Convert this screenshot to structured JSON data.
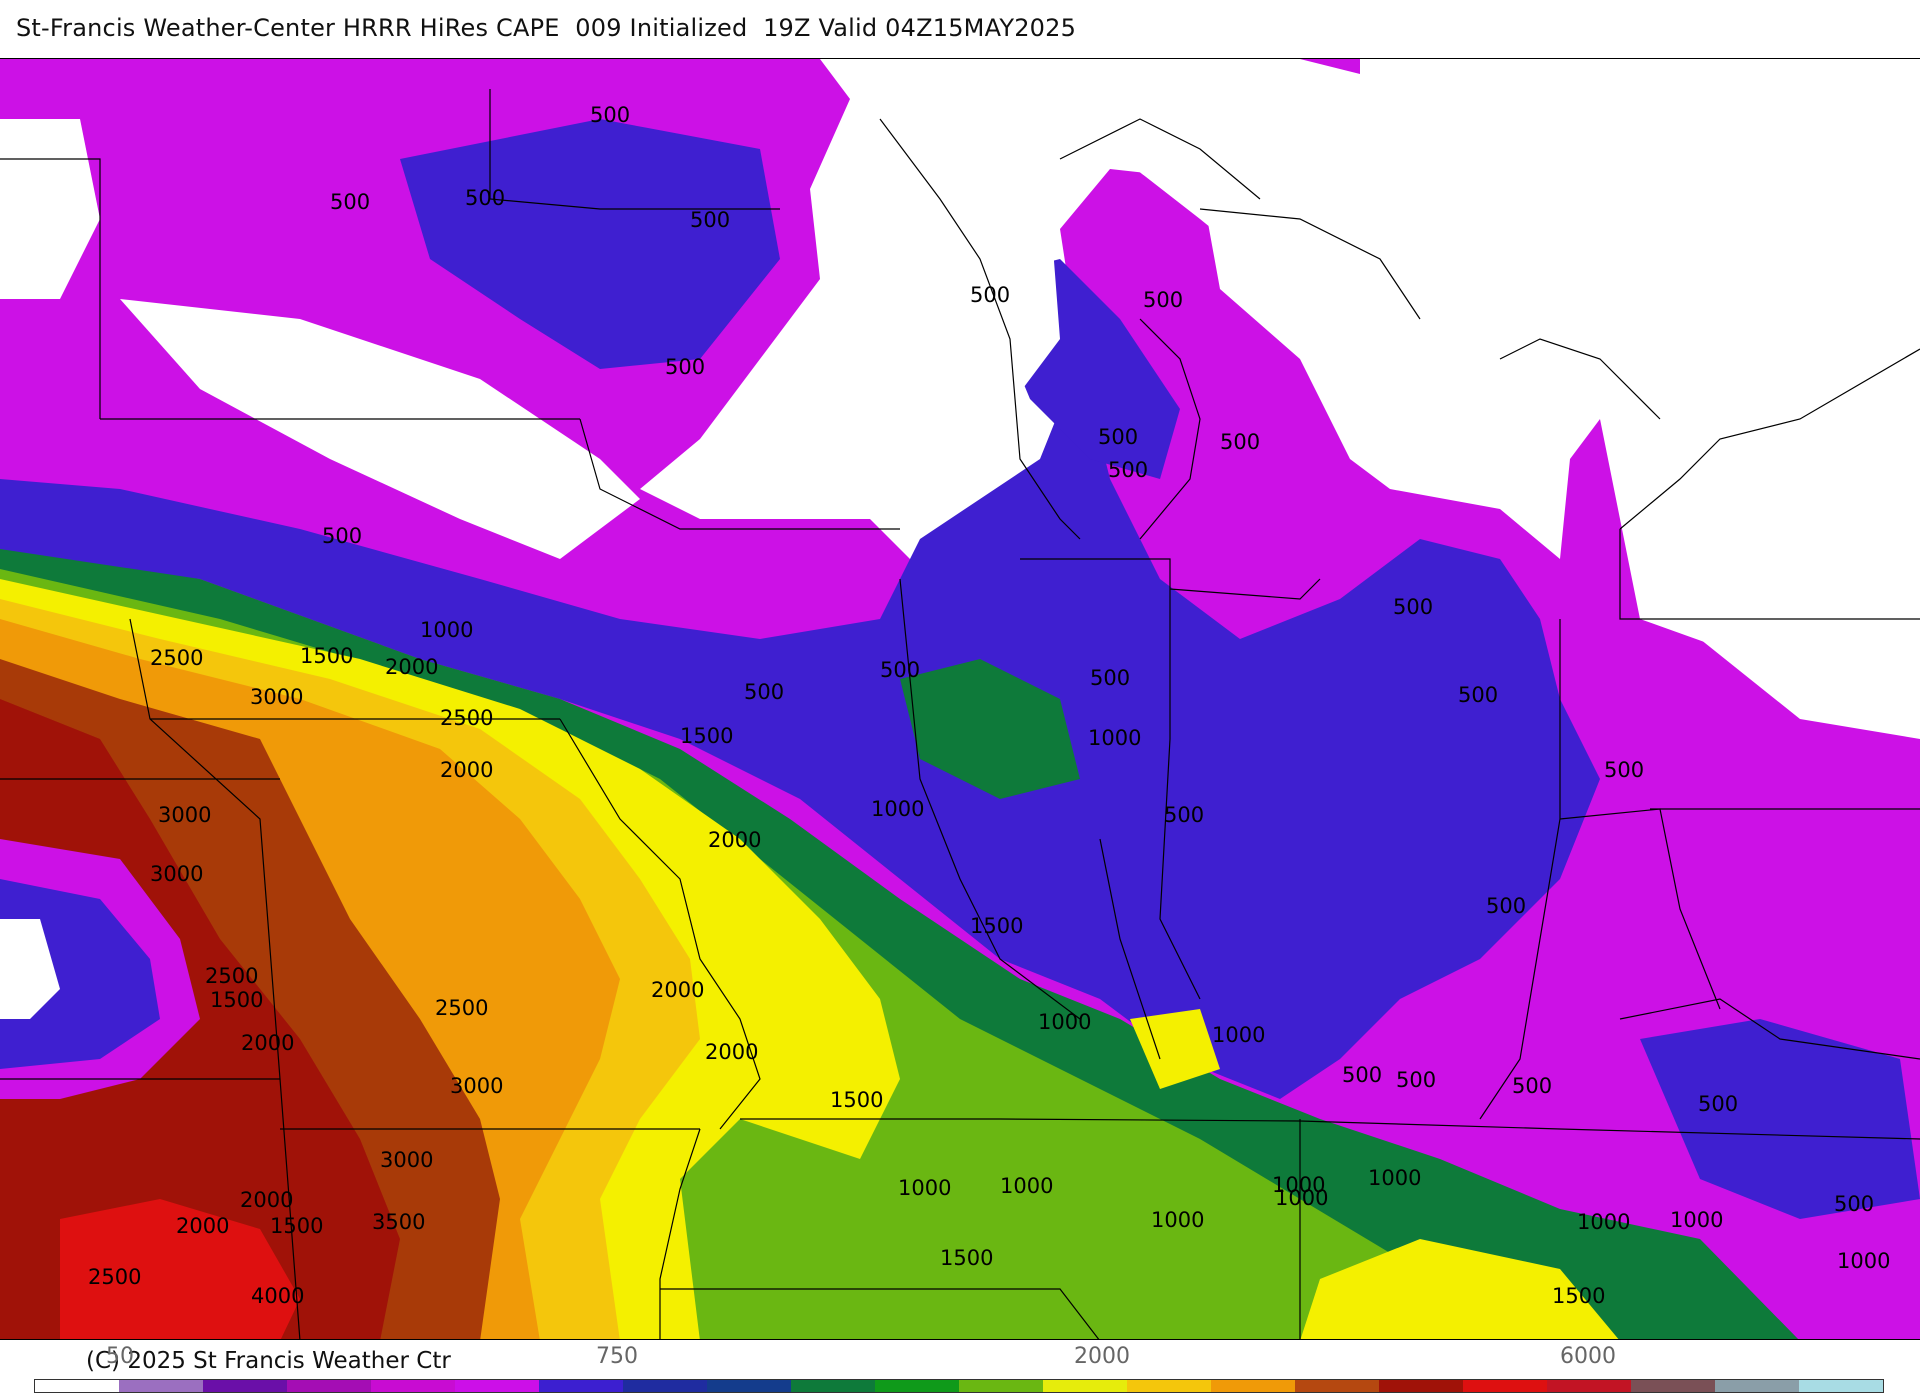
{
  "title": "St-Francis Weather-Center HRRR HiRes CAPE  009 Initialized  19Z Valid 04Z15MAY2025",
  "copyright": "(C) 2025 St Francis Weather Ctr",
  "colorbar": {
    "colors": [
      "#ffffff",
      "#9b6fc0",
      "#6a0fa8",
      "#a40db4",
      "#c80cd2",
      "#cc0fe8",
      "#3c1fd0",
      "#1f2ca0",
      "#143c8c",
      "#0e7a3a",
      "#0f9a1a",
      "#6ab712",
      "#e6ec0c",
      "#f4c60c",
      "#f09a08",
      "#b54810",
      "#a01208",
      "#de1010",
      "#c21424",
      "#7a5056",
      "#8a9ea8",
      "#a8dce4"
    ],
    "labels": [
      "50",
      "750",
      "2000",
      "6000"
    ]
  },
  "fill_levels": {
    "colors": {
      "c100": "#a07cc8",
      "c250": "#6b0fa8",
      "c500": "#cc11e6",
      "c750": "#3f1fd0",
      "c1000": "#0e7a3a",
      "c1250": "#6ab712",
      "c1500": "#f4f000",
      "c2000": "#f4c60c",
      "c2500": "#f09a08",
      "c3000": "#a83a08",
      "c3500": "#a01208",
      "c4000": "#de1010"
    }
  },
  "contour_labels": [
    "500",
    "500",
    "500",
    "500",
    "500",
    "500",
    "500",
    "500",
    "500",
    "500",
    "500",
    "500",
    "500",
    "500",
    "500",
    "500",
    "500",
    "500",
    "500",
    "500",
    "500",
    "500",
    "500",
    "500",
    "1000",
    "1000",
    "1000",
    "1000",
    "1000",
    "1000",
    "1000",
    "1000",
    "1000",
    "1000",
    "1000",
    "1000",
    "1000",
    "1000",
    "1500",
    "1500",
    "1500",
    "1500",
    "1500",
    "1500",
    "1500",
    "1500",
    "2000",
    "2000",
    "2000",
    "2000",
    "2000",
    "2000",
    "2000",
    "2000",
    "2500",
    "2500",
    "2500",
    "2500",
    "2500",
    "3000",
    "3000",
    "3000",
    "3000",
    "3000",
    "3500",
    "4000"
  ]
}
